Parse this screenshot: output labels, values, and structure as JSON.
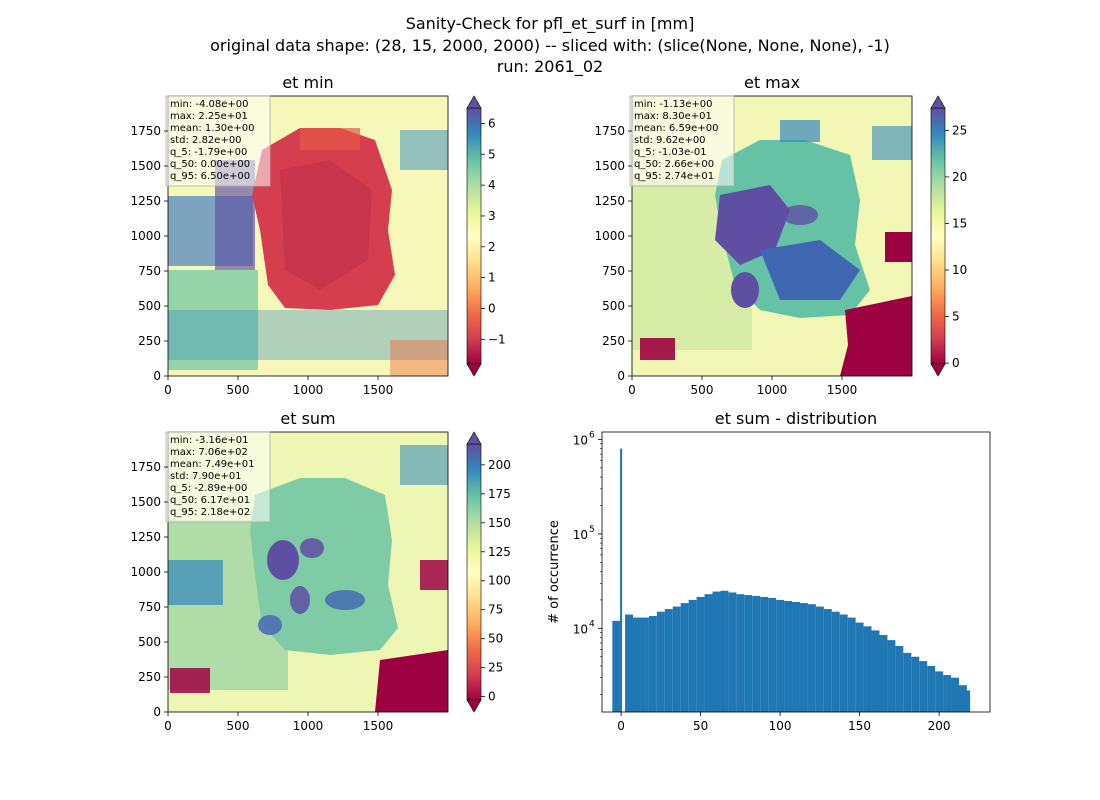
{
  "figure": {
    "title_lines": [
      "Sanity-Check for pfl_et_surf in [mm]",
      "original data shape: (28, 15, 2000, 2000) -- sliced with: (slice(None, None, None), -1)",
      "run: 2061_02"
    ]
  },
  "chart_data": [
    {
      "type": "heatmap",
      "title": "et min",
      "colormap": "Spectral",
      "colorbar_extend": "both",
      "x_ticks": [
        0,
        500,
        1000,
        1500
      ],
      "y_ticks": [
        0,
        250,
        500,
        750,
        1000,
        1250,
        1500,
        1750
      ],
      "xlim": [
        0,
        2000
      ],
      "ylim": [
        0,
        2000
      ],
      "clim": [
        -1.8,
        6.5
      ],
      "colorbar_ticks": [
        -1,
        0,
        1,
        2,
        3,
        4,
        5,
        6
      ],
      "colorbar_labels": [
        "−1",
        "0",
        "1",
        "2",
        "3",
        "4",
        "5",
        "6"
      ],
      "stats": [
        "min: -4.08e+00",
        "max: 2.25e+01",
        "mean: 1.30e+00",
        "std: 2.82e+00",
        "q_5: -1.79e+00",
        "q_50: 0.00e+00",
        "q_95: 6.50e+00"
      ]
    },
    {
      "type": "heatmap",
      "title": "et max",
      "colormap": "Spectral",
      "colorbar_extend": "both",
      "x_ticks": [
        0,
        500,
        1000,
        1500
      ],
      "y_ticks": [
        0,
        250,
        500,
        750,
        1000,
        1250,
        1500,
        1750
      ],
      "xlim": [
        0,
        2000
      ],
      "ylim": [
        0,
        2000
      ],
      "clim": [
        -0.1,
        27.4
      ],
      "colorbar_ticks": [
        0,
        5,
        10,
        15,
        20,
        25
      ],
      "colorbar_labels": [
        "0",
        "5",
        "10",
        "15",
        "20",
        "25"
      ],
      "stats": [
        "min: -1.13e+00",
        "max: 8.30e+01",
        "mean: 6.59e+00",
        "std: 9.62e+00",
        "q_5: -1.03e-01",
        "q_50: 2.66e+00",
        "q_95: 2.74e+01"
      ]
    },
    {
      "type": "heatmap",
      "title": "et sum",
      "colormap": "Spectral",
      "colorbar_extend": "both",
      "x_ticks": [
        0,
        500,
        1000,
        1500
      ],
      "y_ticks": [
        0,
        250,
        500,
        750,
        1000,
        1250,
        1500,
        1750
      ],
      "xlim": [
        0,
        2000
      ],
      "ylim": [
        0,
        2000
      ],
      "clim": [
        -2.9,
        218
      ],
      "colorbar_ticks": [
        0,
        25,
        50,
        75,
        100,
        125,
        150,
        175,
        200
      ],
      "colorbar_labels": [
        "0",
        "25",
        "50",
        "75",
        "100",
        "125",
        "150",
        "175",
        "200"
      ],
      "stats": [
        "min: -3.16e+01",
        "max: 7.06e+02",
        "mean: 7.49e+01",
        "std: 7.90e+01",
        "q_5: -2.89e+00",
        "q_50: 6.17e+01",
        "q_95: 2.18e+02"
      ]
    },
    {
      "type": "bar",
      "title": "et sum - distribution",
      "xlabel": "",
      "ylabel": "# of occurrence",
      "log_y": true,
      "xlim": [
        -12,
        232
      ],
      "x_ticks": [
        0,
        50,
        100,
        150,
        200
      ],
      "y_tick_labels": [
        "10",
        "10",
        "10"
      ],
      "y_tick_exponents": [
        "4",
        "5",
        "6"
      ],
      "y_tick_values": [
        10000,
        100000,
        1000000
      ],
      "color": "#1f77b4",
      "x": [
        -3,
        0,
        5,
        10,
        15,
        20,
        25,
        30,
        35,
        40,
        45,
        50,
        55,
        60,
        65,
        70,
        75,
        80,
        85,
        90,
        95,
        100,
        105,
        110,
        115,
        120,
        125,
        130,
        135,
        140,
        145,
        150,
        155,
        160,
        165,
        170,
        175,
        180,
        185,
        190,
        195,
        200,
        205,
        210,
        215,
        217
      ],
      "values": [
        12000,
        800000,
        14000,
        13000,
        13000,
        13500,
        15000,
        16000,
        17000,
        18500,
        20000,
        21500,
        23000,
        24500,
        25000,
        24000,
        23000,
        22500,
        22000,
        21500,
        21000,
        20000,
        19500,
        19000,
        18500,
        18000,
        17000,
        16000,
        15000,
        14000,
        13000,
        11500,
        10500,
        9500,
        8500,
        7500,
        6500,
        5500,
        5000,
        4500,
        4000,
        3500,
        3200,
        3000,
        2500,
        2200
      ]
    }
  ]
}
